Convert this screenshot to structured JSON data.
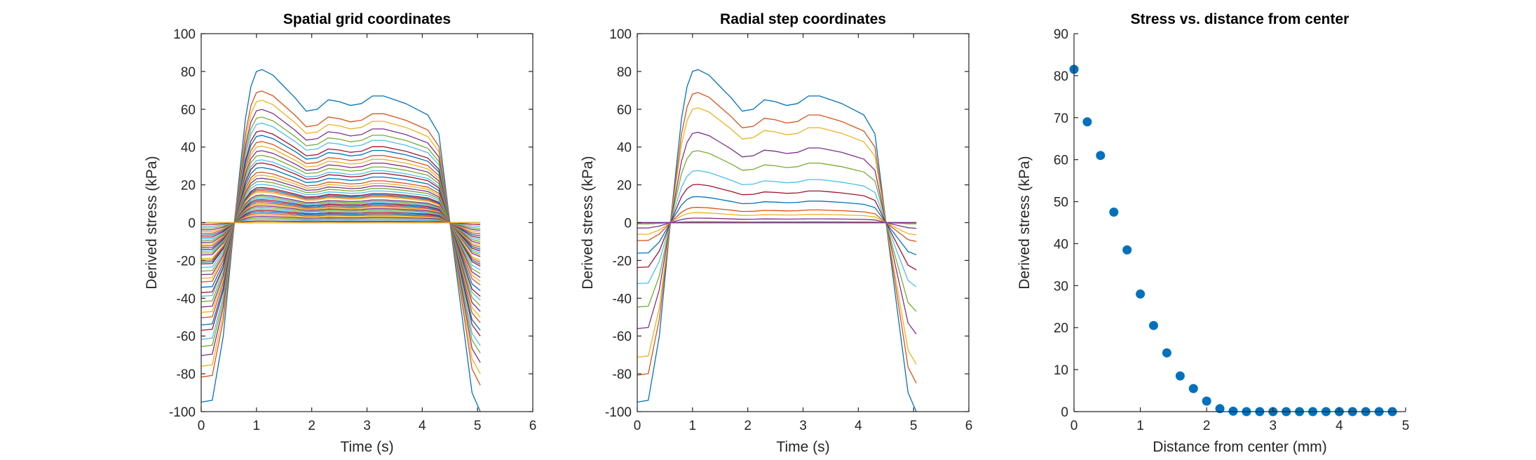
{
  "colors": [
    "#0072BD",
    "#D95319",
    "#EDB120",
    "#7E2F8E",
    "#77AC30",
    "#4DBEEE",
    "#A2142F"
  ],
  "chart_data": [
    {
      "type": "line",
      "title": "Spatial grid coordinates",
      "xlabel": "Time (s)",
      "ylabel": "Derived stress (kPa)",
      "xlim": [
        0,
        6
      ],
      "ylim": [
        -100,
        100
      ],
      "xticks": [
        0,
        1,
        2,
        3,
        4,
        5,
        6
      ],
      "yticks": [
        -100,
        -80,
        -60,
        -40,
        -20,
        0,
        20,
        40,
        60,
        80,
        100
      ],
      "x": [
        0,
        0.2,
        0.4,
        0.6,
        0.8,
        0.9,
        1.0,
        1.1,
        1.3,
        1.5,
        1.7,
        1.9,
        2.1,
        2.3,
        2.5,
        2.7,
        2.9,
        3.1,
        3.3,
        3.5,
        3.7,
        3.9,
        4.1,
        4.3,
        4.5,
        4.7,
        4.9,
        5.05
      ],
      "profile": [
        -95,
        -94,
        -60,
        0,
        55,
        72,
        80,
        81,
        78,
        72,
        66,
        59,
        60,
        65,
        64,
        62,
        63,
        67,
        67,
        65,
        63,
        60,
        57,
        47,
        0,
        -45,
        -90,
        -100
      ],
      "amplitudes": [
        1,
        0.86,
        0.8,
        0.74,
        0.69,
        0.65,
        0.6,
        0.57,
        0.53,
        0.5,
        0.47,
        0.44,
        0.41,
        0.39,
        0.36,
        0.33,
        0.31,
        0.29,
        0.27,
        0.25,
        0.23,
        0.22,
        0.21,
        0.2,
        0.18,
        0.17,
        0.16,
        0.15,
        0.14,
        0.13,
        0.12,
        0.11,
        0.1,
        0.09,
        0.08,
        0.07,
        0.06,
        0.05,
        0.04,
        0.03,
        0.02,
        0.01,
        0,
        0,
        0
      ]
    },
    {
      "type": "line",
      "title": "Radial step coordinates",
      "xlabel": "Time (s)",
      "ylabel": "Derived stress (kPa)",
      "xlim": [
        0,
        6
      ],
      "ylim": [
        -100,
        100
      ],
      "xticks": [
        0,
        1,
        2,
        3,
        4,
        5,
        6
      ],
      "yticks": [
        -100,
        -80,
        -60,
        -40,
        -20,
        0,
        20,
        40,
        60,
        80,
        100
      ],
      "x": [
        0,
        0.2,
        0.4,
        0.6,
        0.8,
        0.9,
        1.0,
        1.1,
        1.3,
        1.5,
        1.7,
        1.9,
        2.1,
        2.3,
        2.5,
        2.7,
        2.9,
        3.1,
        3.3,
        3.5,
        3.7,
        3.9,
        4.1,
        4.3,
        4.5,
        4.7,
        4.9,
        5.05
      ],
      "profile": [
        -95,
        -94,
        -60,
        0,
        55,
        72,
        80,
        81,
        78,
        72,
        66,
        59,
        60,
        65,
        64,
        62,
        63,
        67,
        67,
        65,
        63,
        60,
        57,
        47,
        0,
        -45,
        -90,
        -100
      ],
      "amplitudes": [
        1,
        0.85,
        0.75,
        0.59,
        0.47,
        0.34,
        0.25,
        0.17,
        0.1,
        0.065,
        0.03,
        0.007,
        0,
        0,
        0,
        0,
        0,
        0,
        0,
        0,
        0,
        0,
        0,
        0,
        0
      ]
    },
    {
      "type": "scatter",
      "title": "Stress vs. distance from center",
      "xlabel": "Distance from center (mm)",
      "ylabel": "Derived stress (kPa)",
      "xlim": [
        0,
        5
      ],
      "ylim": [
        0,
        90
      ],
      "xticks": [
        0,
        1,
        2,
        3,
        4,
        5
      ],
      "yticks": [
        0,
        10,
        20,
        30,
        40,
        50,
        60,
        70,
        80,
        90
      ],
      "x": [
        0,
        0.2,
        0.4,
        0.6,
        0.8,
        1.0,
        1.2,
        1.4,
        1.6,
        1.8,
        2.0,
        2.2,
        2.4,
        2.6,
        2.8,
        3.0,
        3.2,
        3.4,
        3.6,
        3.8,
        4.0,
        4.2,
        4.4,
        4.6,
        4.8
      ],
      "y": [
        81.5,
        69,
        61,
        47.5,
        38.5,
        28,
        20.5,
        14,
        8.5,
        5.5,
        2.5,
        0.7,
        0.1,
        0,
        0,
        0,
        0,
        0,
        0,
        0,
        0,
        0,
        0,
        0,
        0
      ]
    }
  ]
}
